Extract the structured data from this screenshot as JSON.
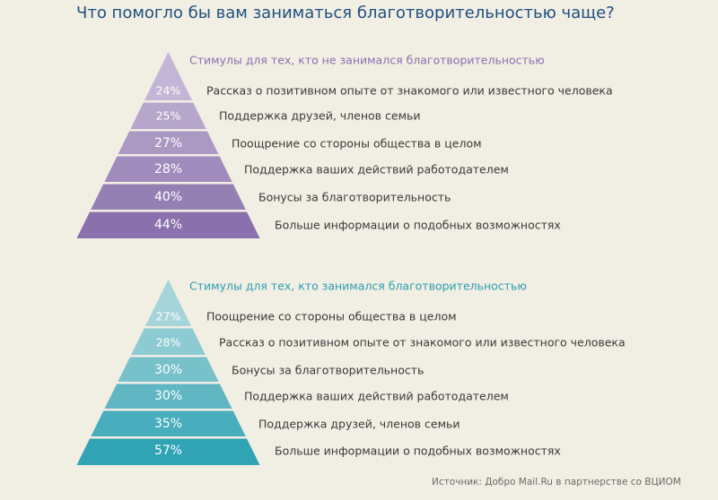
{
  "title": "Что помогло бы вам заниматься благотворительностью чаще?",
  "source": "Источник: Добро Mail.Ru в партнерстве со ВЦИОМ",
  "chart_data": [
    {
      "type": "pyramid",
      "title": "Стимулы для тех, кто не занимался благотворительностью",
      "color": "#8a6fb0",
      "band_colors": [
        "#c3b5d5",
        "#b6a6cc",
        "#ab99c4",
        "#a08cbc",
        "#9580b4",
        "#8a70ac"
      ],
      "categories": [
        "Рассказ о позитивном опыте от знакомого или известного человека",
        "Поддержка друзей, членов семьи",
        "Поощрение со стороны общества в целом",
        "Поддержка ваших действий работодателем",
        "Бонусы за благотворительность",
        "Больше информации о подобных возможностях"
      ],
      "values": [
        24,
        25,
        27,
        28,
        40,
        44
      ],
      "labels": [
        "24%",
        "25%",
        "27%",
        "28%",
        "40%",
        "44%"
      ]
    },
    {
      "type": "pyramid",
      "title": "Стимулы для тех, кто занимался благотворительностью",
      "color": "#2a9fb3",
      "band_colors": [
        "#a5d5da",
        "#8dcbd2",
        "#77c1ca",
        "#60b7c3",
        "#48adbc",
        "#30a3b5"
      ],
      "categories": [
        "Поощрение со стороны общества в целом",
        "Рассказ о позитивном опыте от знакомого или известного человека",
        "Бонусы за благотворительность",
        "Поддержка ваших действий работодателем",
        "Поддержка друзей, членов семьи",
        "Больше информации о подобных возможностях"
      ],
      "values": [
        27,
        28,
        30,
        30,
        35,
        57
      ],
      "labels": [
        "27%",
        "28%",
        "30%",
        "30%",
        "35%",
        "57%"
      ]
    }
  ]
}
